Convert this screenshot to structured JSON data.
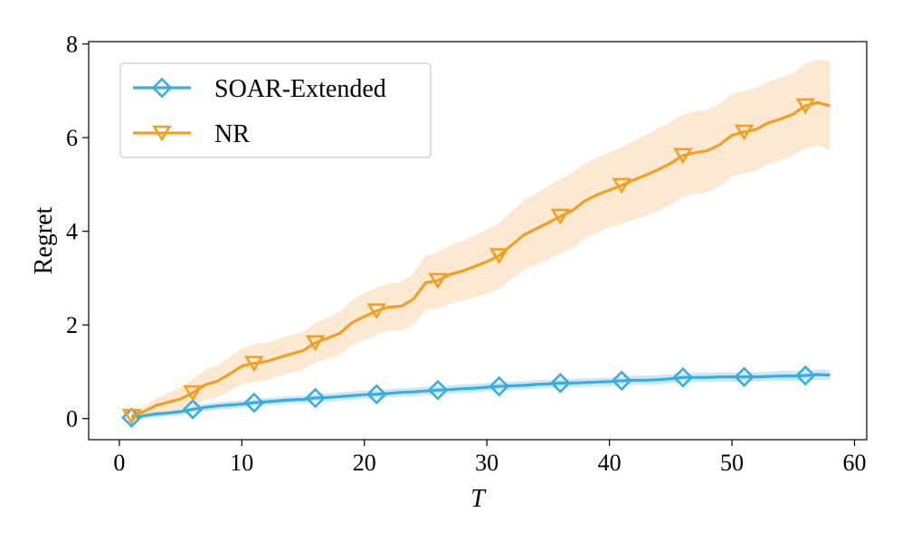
{
  "chart_data": {
    "type": "line",
    "title": "",
    "xlabel": "T",
    "ylabel": "Regret",
    "xlim": [
      -2.5,
      61
    ],
    "ylim": [
      -0.45,
      8.05
    ],
    "xticks": [
      0,
      10,
      20,
      30,
      40,
      50,
      60
    ],
    "yticks": [
      0,
      2,
      4,
      6,
      8
    ],
    "grid": false,
    "legend_position": "top-left",
    "x": [
      1,
      2,
      3,
      4,
      5,
      6,
      7,
      8,
      9,
      10,
      11,
      12,
      13,
      14,
      15,
      16,
      17,
      18,
      19,
      20,
      21,
      22,
      23,
      24,
      25,
      26,
      27,
      28,
      29,
      30,
      31,
      32,
      33,
      34,
      35,
      36,
      37,
      38,
      39,
      40,
      41,
      42,
      43,
      44,
      45,
      46,
      47,
      48,
      49,
      50,
      51,
      52,
      53,
      54,
      55,
      56,
      57,
      58
    ],
    "marker_x": [
      1,
      6,
      11,
      16,
      21,
      26,
      31,
      36,
      41,
      46,
      51,
      56
    ],
    "series": [
      {
        "name": "SOAR-Extended",
        "color": "#3aade0",
        "band_color": "#bfe3f3",
        "marker": "diamond",
        "values": [
          0.02,
          0.06,
          0.1,
          0.12,
          0.15,
          0.2,
          0.24,
          0.27,
          0.29,
          0.31,
          0.34,
          0.36,
          0.38,
          0.4,
          0.41,
          0.44,
          0.45,
          0.47,
          0.49,
          0.51,
          0.52,
          0.54,
          0.56,
          0.57,
          0.59,
          0.61,
          0.62,
          0.64,
          0.65,
          0.67,
          0.69,
          0.7,
          0.71,
          0.73,
          0.74,
          0.76,
          0.76,
          0.77,
          0.78,
          0.79,
          0.81,
          0.82,
          0.82,
          0.83,
          0.85,
          0.88,
          0.88,
          0.88,
          0.89,
          0.89,
          0.89,
          0.89,
          0.9,
          0.91,
          0.91,
          0.92,
          0.94,
          0.93
        ],
        "band": [
          0.05,
          0.06,
          0.07,
          0.07,
          0.08,
          0.08,
          0.08,
          0.08,
          0.08,
          0.08,
          0.08,
          0.08,
          0.08,
          0.08,
          0.08,
          0.08,
          0.09,
          0.09,
          0.09,
          0.09,
          0.09,
          0.09,
          0.09,
          0.09,
          0.09,
          0.09,
          0.09,
          0.09,
          0.09,
          0.09,
          0.09,
          0.09,
          0.09,
          0.09,
          0.09,
          0.09,
          0.09,
          0.09,
          0.09,
          0.09,
          0.09,
          0.1,
          0.1,
          0.1,
          0.1,
          0.1,
          0.1,
          0.1,
          0.1,
          0.1,
          0.1,
          0.1,
          0.1,
          0.11,
          0.11,
          0.11,
          0.11,
          0.11
        ]
      },
      {
        "name": "NR",
        "color": "#f0a024",
        "band_color": "#fde3c7",
        "marker": "triangle_down",
        "values": [
          0.05,
          0.15,
          0.28,
          0.35,
          0.42,
          0.55,
          0.72,
          0.8,
          0.95,
          1.12,
          1.18,
          1.22,
          1.3,
          1.38,
          1.45,
          1.62,
          1.72,
          1.82,
          2.05,
          2.18,
          2.3,
          2.38,
          2.4,
          2.55,
          2.9,
          2.95,
          3.08,
          3.15,
          3.25,
          3.35,
          3.48,
          3.7,
          3.92,
          4.05,
          4.18,
          4.32,
          4.45,
          4.65,
          4.78,
          4.88,
          4.98,
          5.1,
          5.2,
          5.32,
          5.45,
          5.62,
          5.68,
          5.72,
          5.85,
          6.05,
          6.12,
          6.18,
          6.32,
          6.4,
          6.5,
          6.68,
          6.75,
          6.68
        ],
        "band": [
          0.05,
          0.1,
          0.15,
          0.2,
          0.25,
          0.3,
          0.32,
          0.34,
          0.36,
          0.38,
          0.4,
          0.4,
          0.4,
          0.4,
          0.4,
          0.42,
          0.44,
          0.46,
          0.48,
          0.5,
          0.5,
          0.5,
          0.52,
          0.55,
          0.58,
          0.6,
          0.62,
          0.64,
          0.66,
          0.68,
          0.7,
          0.72,
          0.74,
          0.76,
          0.78,
          0.8,
          0.8,
          0.8,
          0.8,
          0.8,
          0.82,
          0.84,
          0.86,
          0.88,
          0.88,
          0.88,
          0.88,
          0.88,
          0.88,
          0.88,
          0.88,
          0.88,
          0.88,
          0.88,
          0.88,
          0.9,
          0.92,
          0.95
        ]
      }
    ]
  }
}
